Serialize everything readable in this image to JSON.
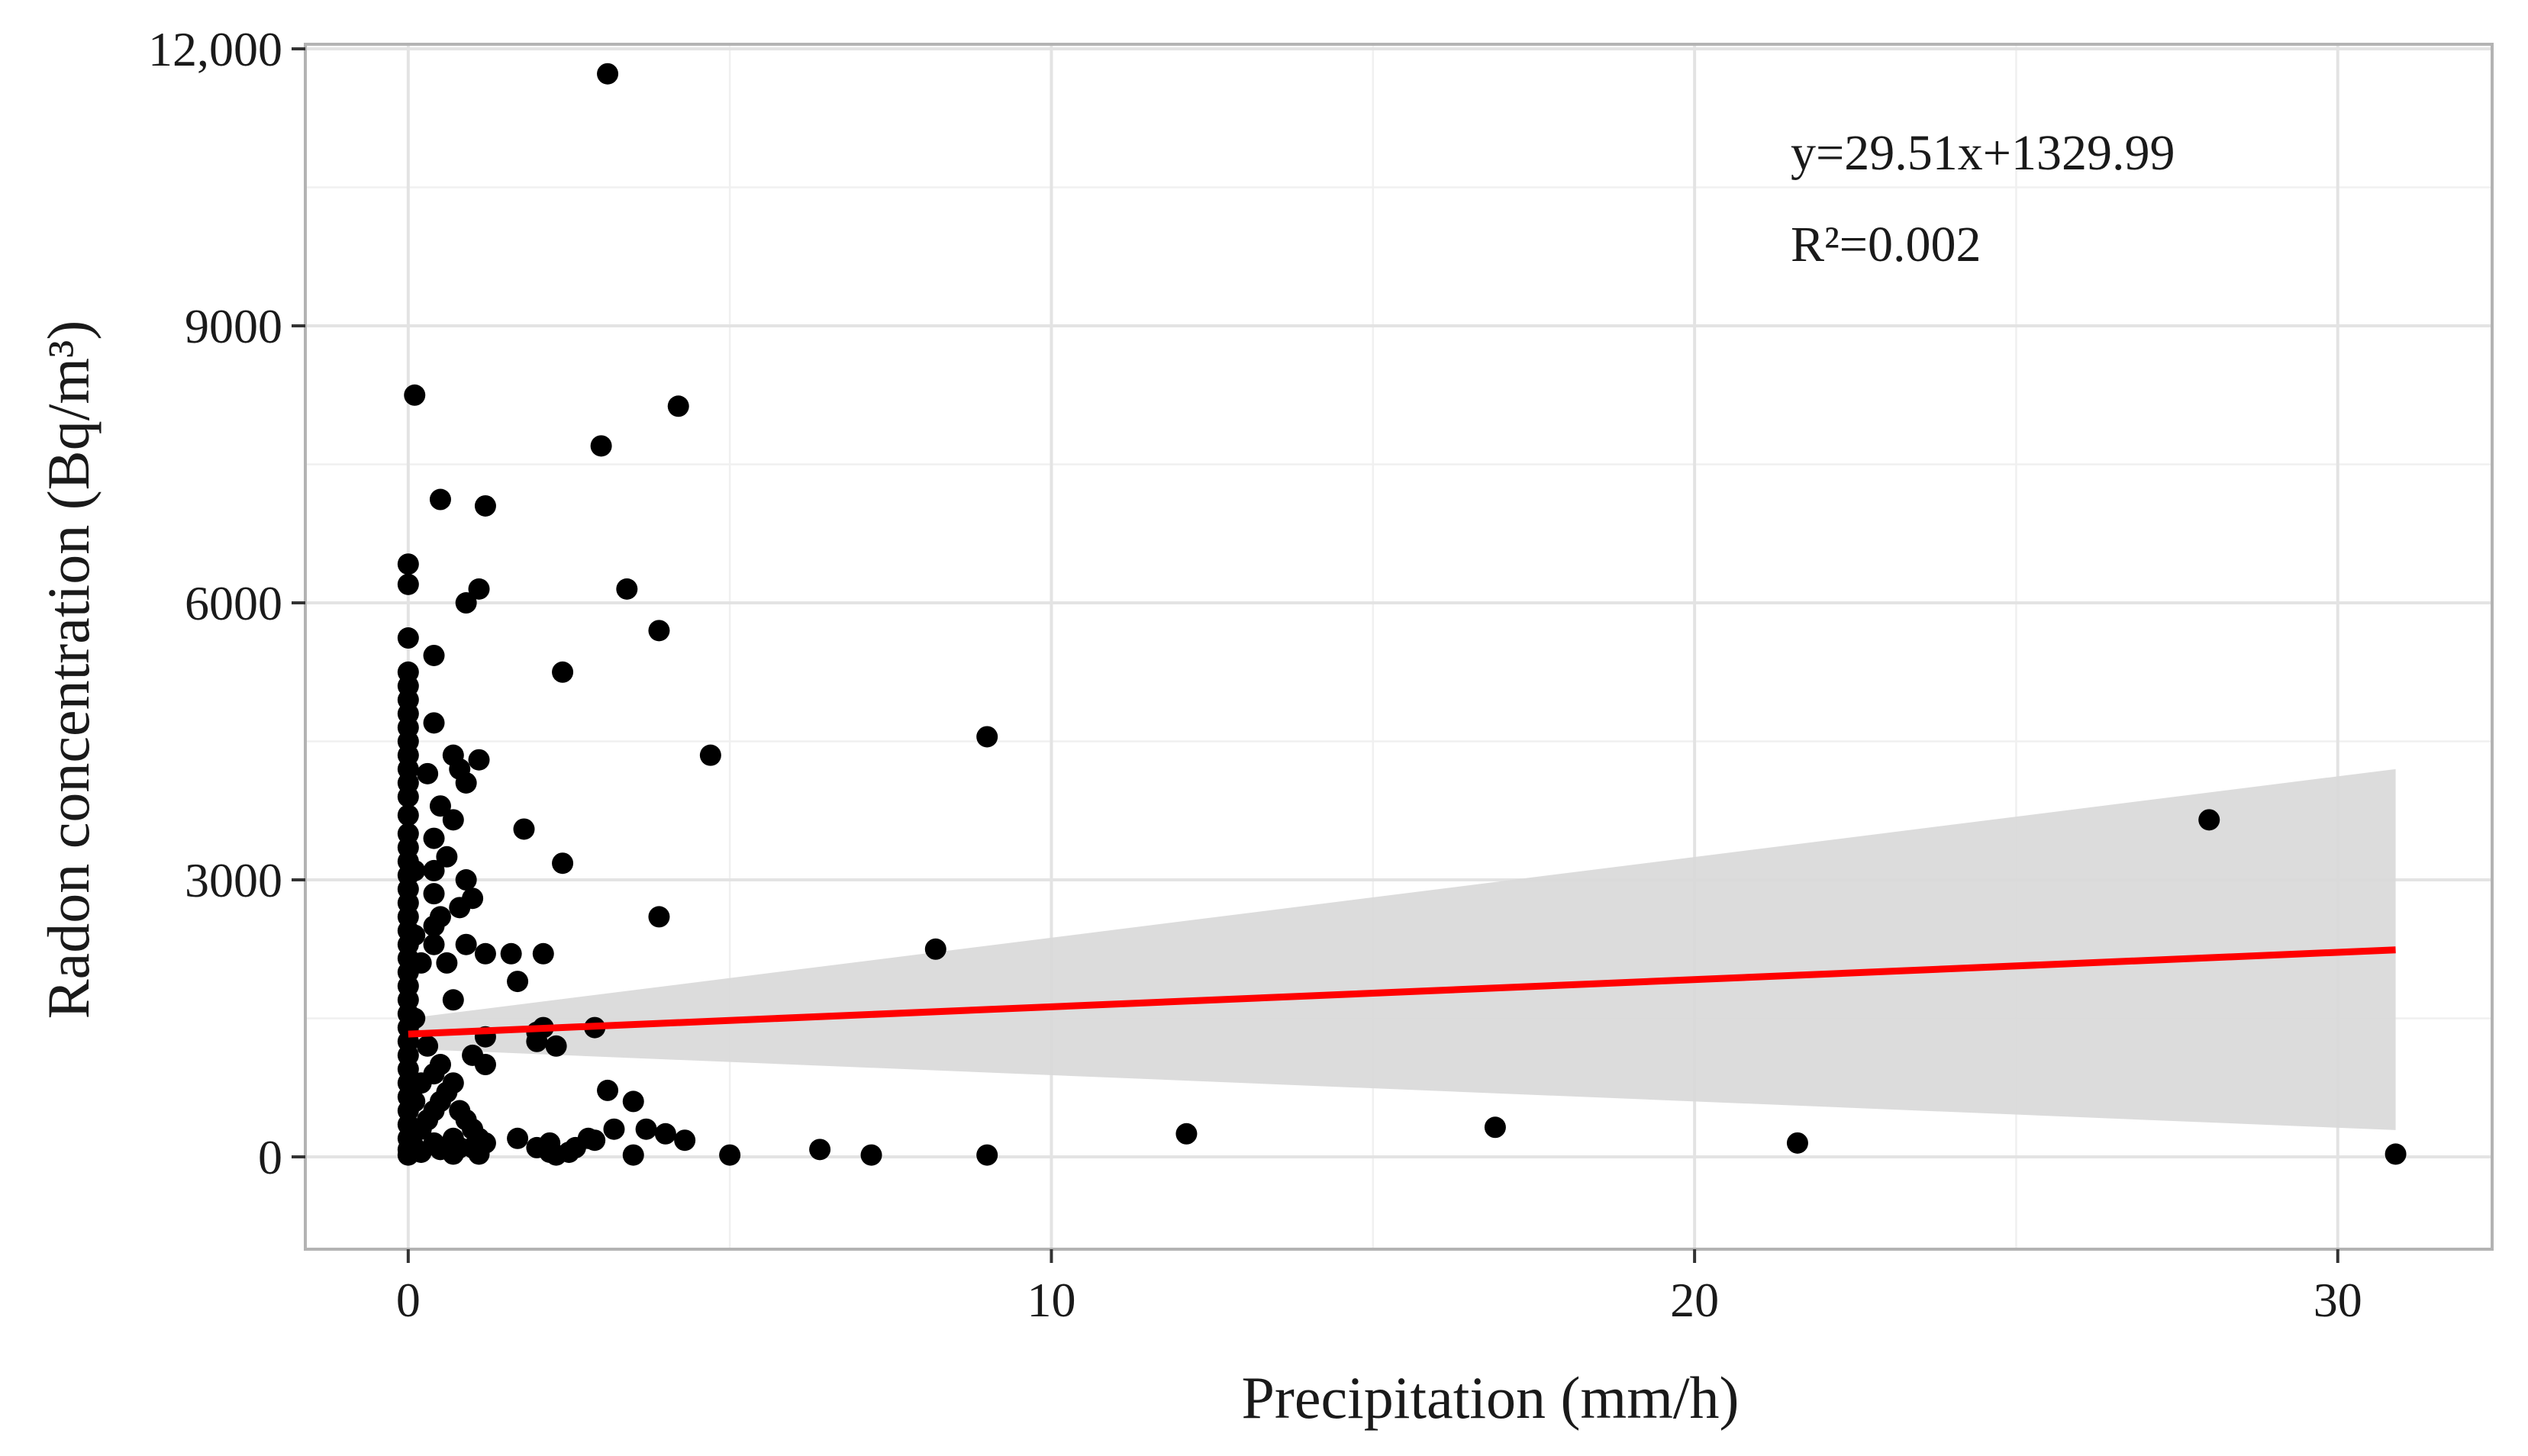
{
  "chart_data": {
    "type": "scatter",
    "title": "",
    "xlabel": "Precipitation (mm/h)",
    "ylabel": "Radon concentration (Bq/m³)",
    "xlim": [
      -1.6,
      32.4
    ],
    "ylim": [
      -1000,
      12050
    ],
    "x_ticks": [
      0,
      10,
      20,
      30
    ],
    "x_tick_labels": [
      "0",
      "10",
      "20",
      "30"
    ],
    "y_ticks": [
      0,
      3000,
      6000,
      9000,
      12000
    ],
    "y_tick_labels": [
      "0",
      "3000",
      "6000",
      "9000",
      "12,000"
    ],
    "grid": true,
    "annotations": [
      "y=29.51x+1329.99",
      "R²=0.002"
    ],
    "regression": {
      "slope": 29.51,
      "intercept": 1329.99,
      "x_range": [
        0,
        30.9
      ],
      "color": "#ff0000",
      "confidence_band": {
        "x": [
          0,
          30.9
        ],
        "lower": [
          1170,
          290
        ],
        "upper": [
          1500,
          4200
        ],
        "color": "#d9d9d9"
      }
    },
    "series": [
      {
        "name": "observations",
        "color": "#000000",
        "points": [
          [
            0,
            6420
          ],
          [
            0,
            6200
          ],
          [
            0,
            5620
          ],
          [
            0,
            5250
          ],
          [
            0,
            5100
          ],
          [
            0,
            4950
          ],
          [
            0,
            4800
          ],
          [
            0,
            4650
          ],
          [
            0,
            4500
          ],
          [
            0,
            4350
          ],
          [
            0,
            4200
          ],
          [
            0,
            4050
          ],
          [
            0,
            3900
          ],
          [
            0,
            3700
          ],
          [
            0,
            3500
          ],
          [
            0,
            3350
          ],
          [
            0,
            3200
          ],
          [
            0,
            3050
          ],
          [
            0,
            2900
          ],
          [
            0,
            2750
          ],
          [
            0,
            2600
          ],
          [
            0,
            2450
          ],
          [
            0,
            2300
          ],
          [
            0,
            2150
          ],
          [
            0,
            2000
          ],
          [
            0,
            1850
          ],
          [
            0,
            1700
          ],
          [
            0,
            1550
          ],
          [
            0,
            1400
          ],
          [
            0,
            1250
          ],
          [
            0,
            1100
          ],
          [
            0,
            950
          ],
          [
            0,
            800
          ],
          [
            0,
            650
          ],
          [
            0,
            500
          ],
          [
            0,
            350
          ],
          [
            0,
            200
          ],
          [
            0,
            80
          ],
          [
            0,
            20
          ],
          [
            0.1,
            8250
          ],
          [
            0.1,
            3100
          ],
          [
            0.1,
            2400
          ],
          [
            0.1,
            1500
          ],
          [
            0.1,
            600
          ],
          [
            0.1,
            100
          ],
          [
            0.2,
            2100
          ],
          [
            0.2,
            800
          ],
          [
            0.2,
            300
          ],
          [
            0.2,
            50
          ],
          [
            0.3,
            4150
          ],
          [
            0.3,
            1200
          ],
          [
            0.3,
            400
          ],
          [
            0.4,
            5430
          ],
          [
            0.4,
            4700
          ],
          [
            0.4,
            3450
          ],
          [
            0.4,
            3100
          ],
          [
            0.4,
            2850
          ],
          [
            0.4,
            2500
          ],
          [
            0.4,
            2300
          ],
          [
            0.4,
            900
          ],
          [
            0.4,
            500
          ],
          [
            0.4,
            150
          ],
          [
            0.5,
            7120
          ],
          [
            0.5,
            3800
          ],
          [
            0.5,
            2600
          ],
          [
            0.5,
            1000
          ],
          [
            0.5,
            600
          ],
          [
            0.5,
            80
          ],
          [
            0.6,
            3250
          ],
          [
            0.6,
            2100
          ],
          [
            0.6,
            700
          ],
          [
            0.7,
            4350
          ],
          [
            0.7,
            3650
          ],
          [
            0.7,
            1700
          ],
          [
            0.7,
            800
          ],
          [
            0.7,
            200
          ],
          [
            0.7,
            30
          ],
          [
            0.8,
            4200
          ],
          [
            0.8,
            2700
          ],
          [
            0.8,
            500
          ],
          [
            0.8,
            100
          ],
          [
            0.9,
            6000
          ],
          [
            0.9,
            4050
          ],
          [
            0.9,
            3000
          ],
          [
            0.9,
            2300
          ],
          [
            0.9,
            400
          ],
          [
            1.0,
            2800
          ],
          [
            1.0,
            1100
          ],
          [
            1.0,
            300
          ],
          [
            1.0,
            100
          ],
          [
            1.1,
            6150
          ],
          [
            1.1,
            4300
          ],
          [
            1.1,
            200
          ],
          [
            1.1,
            30
          ],
          [
            1.2,
            7050
          ],
          [
            1.2,
            2200
          ],
          [
            1.2,
            1300
          ],
          [
            1.2,
            1000
          ],
          [
            1.2,
            150
          ],
          [
            1.6,
            2200
          ],
          [
            1.7,
            1900
          ],
          [
            1.7,
            200
          ],
          [
            1.8,
            3550
          ],
          [
            2.0,
            1250
          ],
          [
            2.0,
            1350
          ],
          [
            2.0,
            100
          ],
          [
            2.1,
            2200
          ],
          [
            2.1,
            1400
          ],
          [
            2.2,
            50
          ],
          [
            2.2,
            150
          ],
          [
            2.3,
            1200
          ],
          [
            2.3,
            20
          ],
          [
            2.4,
            5250
          ],
          [
            2.4,
            3180
          ],
          [
            2.5,
            50
          ],
          [
            2.6,
            100
          ],
          [
            2.8,
            200
          ],
          [
            2.9,
            1400
          ],
          [
            2.9,
            180
          ],
          [
            3.0,
            7700
          ],
          [
            3.1,
            11730
          ],
          [
            3.1,
            720
          ],
          [
            3.2,
            300
          ],
          [
            3.4,
            6150
          ],
          [
            3.5,
            600
          ],
          [
            3.5,
            20
          ],
          [
            3.7,
            300
          ],
          [
            3.9,
            2600
          ],
          [
            3.9,
            5700
          ],
          [
            4.0,
            250
          ],
          [
            4.2,
            8130
          ],
          [
            4.3,
            180
          ],
          [
            4.7,
            4350
          ],
          [
            5.0,
            20
          ],
          [
            6.4,
            80
          ],
          [
            7.2,
            20
          ],
          [
            8.2,
            2250
          ],
          [
            9.0,
            4550
          ],
          [
            9.0,
            20
          ],
          [
            12.1,
            250
          ],
          [
            16.9,
            320
          ],
          [
            21.6,
            150
          ],
          [
            28.0,
            3650
          ],
          [
            30.9,
            30
          ]
        ]
      }
    ]
  }
}
